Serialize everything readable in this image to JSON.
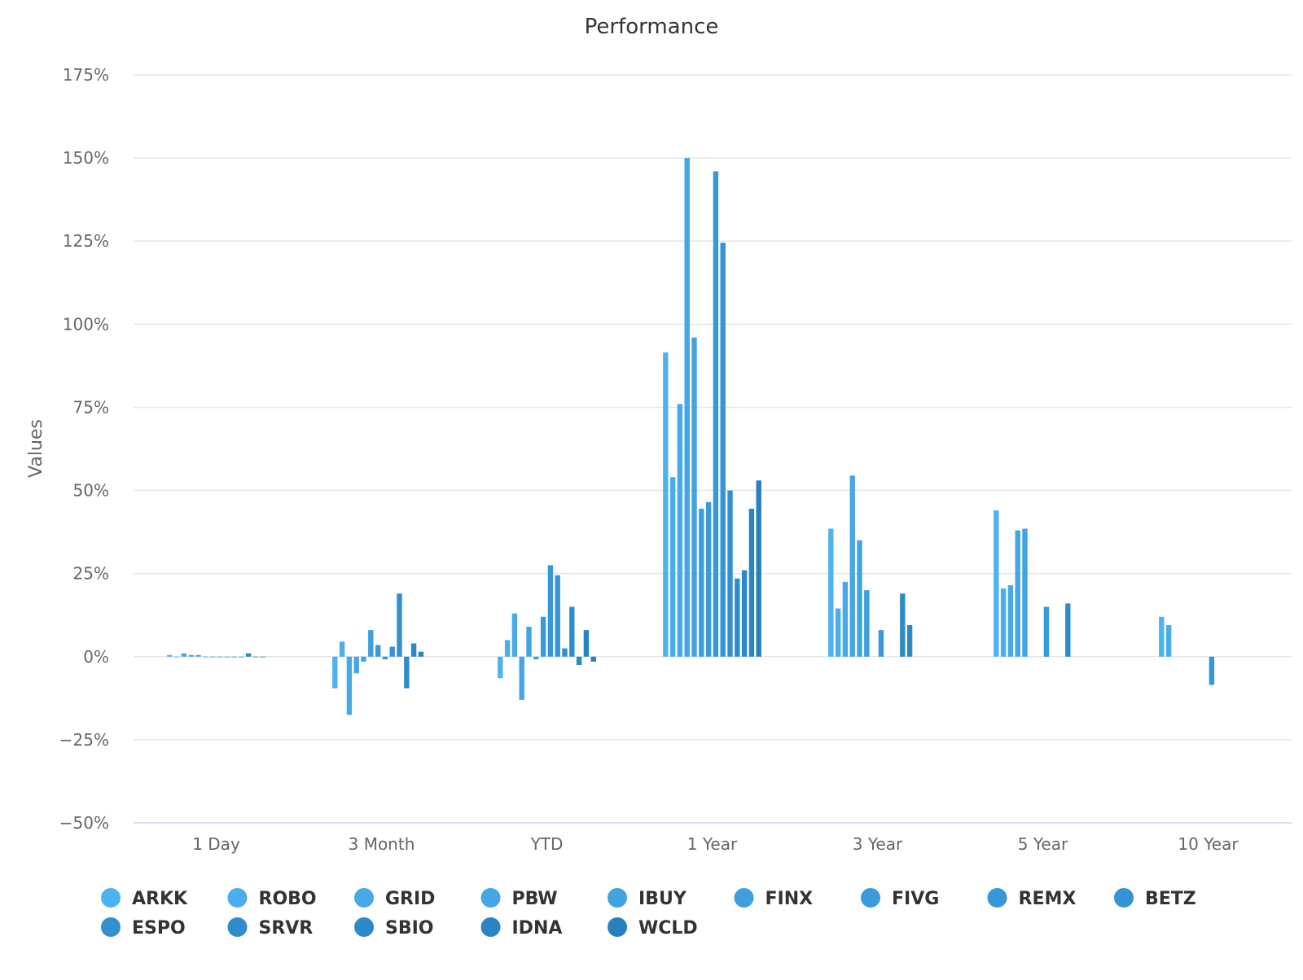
{
  "chart_data": {
    "type": "bar",
    "title": "Performance",
    "xlabel": "",
    "ylabel": "Values",
    "ylim": [
      -50,
      175
    ],
    "yticks": [
      -50,
      -25,
      0,
      25,
      50,
      75,
      100,
      125,
      150,
      175
    ],
    "ytick_labels": [
      "−50%",
      "−25%",
      "0%",
      "25%",
      "50%",
      "75%",
      "100%",
      "125%",
      "150%",
      "175%"
    ],
    "grid": true,
    "legend_position": "bottom",
    "categories": [
      "1 Day",
      "3 Month",
      "YTD",
      "1 Year",
      "3 Year",
      "5 Year",
      "10 Year"
    ],
    "series": [
      {
        "name": "ARKK",
        "color": "#4db3f0",
        "values": [
          0.5,
          -9.5,
          -6.5,
          91.5,
          38.5,
          44,
          12
        ]
      },
      {
        "name": "ROBO",
        "color": "#4aaeeb",
        "values": [
          -0.2,
          4.5,
          5,
          54,
          14.5,
          20.5,
          9.5
        ]
      },
      {
        "name": "GRID",
        "color": "#47aae7",
        "values": [
          1,
          -17.5,
          13,
          76,
          22.5,
          21.5,
          null
        ]
      },
      {
        "name": "PBW",
        "color": "#44a6e4",
        "values": [
          0.5,
          -5,
          -13,
          150,
          54.5,
          38,
          null
        ]
      },
      {
        "name": "IBUY",
        "color": "#42a3e1",
        "values": [
          0.5,
          -1.5,
          9,
          96,
          35,
          38.5,
          null
        ]
      },
      {
        "name": "FINX",
        "color": "#3e9fdd",
        "values": [
          0,
          8,
          -0.8,
          44.5,
          20,
          null,
          null
        ]
      },
      {
        "name": "FIVG",
        "color": "#3b9bd9",
        "values": [
          0,
          3.5,
          12,
          46.5,
          null,
          null,
          null
        ]
      },
      {
        "name": "REMX",
        "color": "#3897d6",
        "values": [
          0,
          -0.8,
          27.5,
          146,
          8,
          15,
          -8.5
        ]
      },
      {
        "name": "BETZ",
        "color": "#3594d3",
        "values": [
          0,
          3,
          24.5,
          124.5,
          null,
          null,
          null
        ]
      },
      {
        "name": "ESPO",
        "color": "#3290cf",
        "values": [
          -0.2,
          19,
          2.5,
          50,
          null,
          null,
          null
        ]
      },
      {
        "name": "SRVR",
        "color": "#2f8ccb",
        "values": [
          0,
          -9.5,
          15,
          23.5,
          19,
          16,
          null
        ]
      },
      {
        "name": "SBIO",
        "color": "#2c88c7",
        "values": [
          1,
          4,
          -2.5,
          26,
          9.5,
          null,
          null
        ]
      },
      {
        "name": "IDNA",
        "color": "#2a84c3",
        "values": [
          0,
          1.5,
          8,
          44.5,
          null,
          null,
          null
        ]
      },
      {
        "name": "WCLD",
        "color": "#2780bf",
        "values": [
          0,
          null,
          -1.5,
          53,
          null,
          null,
          null
        ]
      }
    ]
  }
}
